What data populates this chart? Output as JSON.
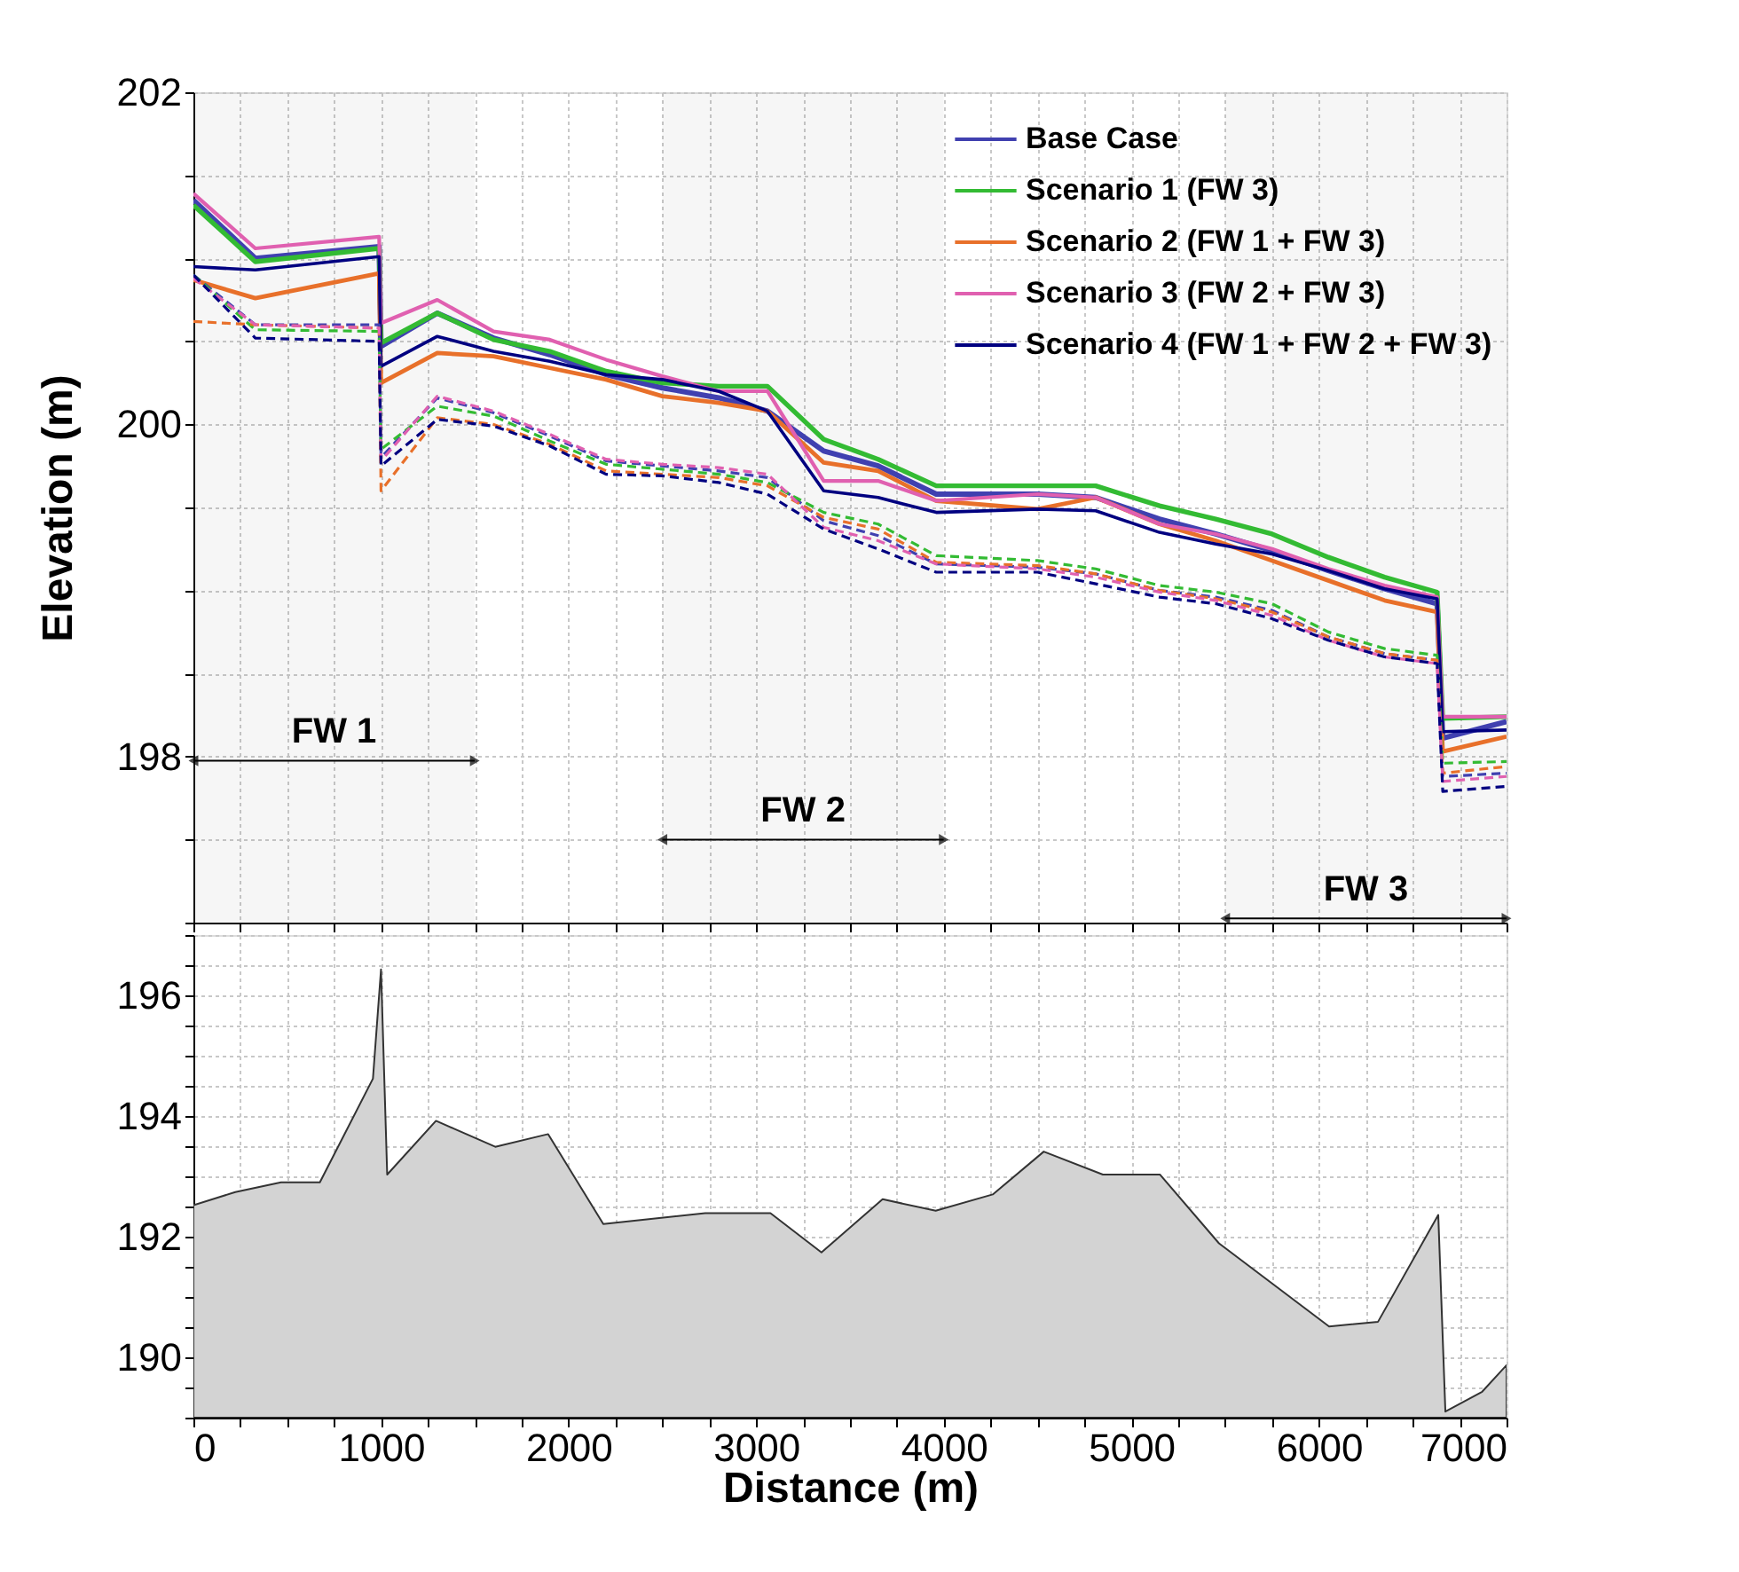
{
  "chart_data": [
    {
      "type": "line",
      "ylabel": "Elevation (m)",
      "xlim": [
        0,
        7000
      ],
      "ylim": [
        197,
        202
      ],
      "xticks": [
        0,
        {
          "value": 250,
          "label": null
        },
        {
          "value": 500,
          "label": null
        },
        {
          "value": 750,
          "label": null
        },
        1000,
        {
          "value": 1250,
          "label": null
        },
        {
          "value": 1500,
          "label": null
        },
        {
          "value": 1750,
          "label": null
        },
        2000,
        {
          "value": 2250,
          "label": null
        },
        {
          "value": 2500,
          "label": null
        },
        {
          "value": 2750,
          "label": null
        },
        3000,
        {
          "value": 3250,
          "label": null
        },
        {
          "value": 3500,
          "label": null
        },
        {
          "value": 3750,
          "label": null
        },
        4000,
        {
          "value": 4250,
          "label": null
        },
        {
          "value": 4500,
          "label": null
        },
        {
          "value": 4750,
          "label": null
        },
        5000,
        {
          "value": 5250,
          "label": null
        },
        {
          "value": 5500,
          "label": null
        },
        {
          "value": 5750,
          "label": null
        },
        6000,
        {
          "value": 6250,
          "label": null
        },
        {
          "value": 6500,
          "label": null
        },
        {
          "value": 6750,
          "label": null
        },
        7000
      ],
      "yticks": [
        {
          "value": 197,
          "label": null
        },
        {
          "value": 197.5,
          "label": null
        },
        198,
        {
          "value": 198.5,
          "label": null
        },
        {
          "value": 199,
          "label": null
        },
        {
          "value": 199.5,
          "label": null
        },
        200,
        {
          "value": 200.5,
          "label": null
        },
        {
          "value": 201,
          "label": null
        },
        {
          "value": 201.5,
          "label": null
        },
        202
      ],
      "tick_labels": "y",
      "grid": true,
      "legend": "top right",
      "x": [
        0,
        330,
        990,
        1000,
        1300,
        1600,
        1900,
        2200,
        2500,
        2800,
        3060,
        3360,
        3650,
        3960,
        4500,
        4810,
        5150,
        5450,
        5750,
        6050,
        6350,
        6630,
        6660,
        7000
      ],
      "series": [
        {
          "name": "Base Case",
          "color": "#4040b0",
          "line_style": "solid",
          "values": [
            201.35,
            201.0,
            201.07,
            200.47,
            200.67,
            200.52,
            200.42,
            200.3,
            200.22,
            200.16,
            200.08,
            199.84,
            199.75,
            199.58,
            199.58,
            199.56,
            199.43,
            199.34,
            199.24,
            199.12,
            199.01,
            198.92,
            198.11,
            198.21
          ]
        },
        {
          "name": "Scenario 1 (FW 3)",
          "color": "#33bb33",
          "line_style": "solid",
          "values": [
            201.32,
            200.98,
            201.06,
            200.49,
            200.67,
            200.51,
            200.44,
            200.32,
            200.25,
            200.23,
            200.23,
            199.91,
            199.79,
            199.63,
            199.63,
            199.63,
            199.51,
            199.43,
            199.34,
            199.2,
            199.08,
            198.99,
            198.23,
            198.24
          ]
        },
        {
          "name": "Scenario 2 (FW 1 + FW 3)",
          "color": "#e8702a",
          "line_style": "solid",
          "values": [
            200.87,
            200.76,
            200.91,
            200.25,
            200.43,
            200.41,
            200.34,
            200.27,
            200.17,
            200.13,
            200.08,
            199.77,
            199.72,
            199.54,
            199.49,
            199.56,
            199.4,
            199.3,
            199.18,
            199.06,
            198.94,
            198.87,
            198.03,
            198.12
          ]
        },
        {
          "name": "Scenario 3 (FW 2 + FW 3)",
          "color": "#e060b0",
          "line_style": "solid",
          "values": [
            201.39,
            201.06,
            201.13,
            200.61,
            200.75,
            200.56,
            200.51,
            200.39,
            200.29,
            200.2,
            200.2,
            199.66,
            199.66,
            199.54,
            199.58,
            199.56,
            199.4,
            199.34,
            199.25,
            199.13,
            199.03,
            198.96,
            198.24,
            198.24
          ]
        },
        {
          "name": "Scenario 4 (FW 1 + FW 2 + FW 3)",
          "color": "#000080",
          "line_style": "solid",
          "values": [
            200.95,
            200.93,
            201.01,
            200.35,
            200.53,
            200.44,
            200.38,
            200.3,
            200.27,
            200.2,
            200.08,
            199.6,
            199.56,
            199.47,
            199.49,
            199.48,
            199.35,
            199.28,
            199.22,
            199.12,
            199.01,
            198.95,
            198.15,
            198.16
          ]
        },
        {
          "color": "#4040b0",
          "line_style": "dashed",
          "values": [
            200.9,
            200.6,
            200.6,
            199.8,
            200.16,
            200.07,
            199.93,
            199.78,
            199.75,
            199.72,
            199.68,
            199.42,
            199.33,
            199.16,
            199.14,
            199.1,
            199.0,
            198.96,
            198.88,
            198.72,
            198.62,
            198.58,
            197.88,
            197.9
          ]
        },
        {
          "color": "#33bb33",
          "line_style": "dashed",
          "values": [
            200.9,
            200.57,
            200.56,
            199.85,
            200.11,
            200.05,
            199.9,
            199.76,
            199.73,
            199.7,
            199.65,
            199.47,
            199.4,
            199.21,
            199.18,
            199.13,
            199.03,
            198.99,
            198.92,
            198.75,
            198.65,
            198.61,
            197.96,
            197.97
          ]
        },
        {
          "color": "#e8702a",
          "line_style": "dashed",
          "values": [
            200.62,
            200.6,
            200.58,
            199.6,
            200.04,
            200.0,
            199.88,
            199.72,
            199.7,
            199.68,
            199.63,
            199.44,
            199.37,
            199.17,
            199.15,
            199.1,
            199.0,
            198.95,
            198.87,
            198.72,
            198.62,
            198.58,
            197.9,
            197.94
          ]
        },
        {
          "color": "#e060b0",
          "line_style": "dashed",
          "values": [
            200.88,
            200.6,
            200.58,
            199.78,
            200.17,
            200.08,
            199.94,
            199.79,
            199.76,
            199.74,
            199.7,
            199.38,
            199.3,
            199.16,
            199.13,
            199.08,
            198.99,
            198.94,
            198.85,
            198.7,
            198.6,
            198.56,
            197.85,
            197.88
          ]
        },
        {
          "color": "#000080",
          "line_style": "dashed",
          "values": [
            200.9,
            200.52,
            200.5,
            199.75,
            200.03,
            199.99,
            199.87,
            199.7,
            199.69,
            199.65,
            199.58,
            199.37,
            199.25,
            199.11,
            199.11,
            199.04,
            198.96,
            198.92,
            198.83,
            198.7,
            198.6,
            198.56,
            197.79,
            197.82
          ]
        }
      ],
      "bands": [
        {
          "axis": "x",
          "from": 0,
          "to": 1500,
          "label": "FW 1"
        },
        {
          "axis": "x",
          "from": 2500,
          "to": 4000,
          "label": "FW 2"
        },
        {
          "axis": "x",
          "from": 5500,
          "to": 7000,
          "label": "FW 3"
        }
      ]
    },
    {
      "type": "area",
      "xlabel": "Distance (m)",
      "xlim": [
        0,
        7000
      ],
      "ylim": [
        189,
        197
      ],
      "xticks": [
        0,
        {
          "value": 250,
          "label": null
        },
        {
          "value": 500,
          "label": null
        },
        {
          "value": 750,
          "label": null
        },
        1000,
        {
          "value": 1250,
          "label": null
        },
        {
          "value": 1500,
          "label": null
        },
        {
          "value": 1750,
          "label": null
        },
        2000,
        {
          "value": 2250,
          "label": null
        },
        {
          "value": 2500,
          "label": null
        },
        {
          "value": 2750,
          "label": null
        },
        3000,
        {
          "value": 3250,
          "label": null
        },
        {
          "value": 3500,
          "label": null
        },
        {
          "value": 3750,
          "label": null
        },
        4000,
        {
          "value": 4250,
          "label": null
        },
        {
          "value": 4500,
          "label": null
        },
        {
          "value": 4750,
          "label": null
        },
        5000,
        {
          "value": 5250,
          "label": null
        },
        {
          "value": 5500,
          "label": null
        },
        {
          "value": 5750,
          "label": null
        },
        6000,
        {
          "value": 6250,
          "label": null
        },
        {
          "value": 6500,
          "label": null
        },
        {
          "value": 6750,
          "label": null
        },
        7000
      ],
      "yticks": [
        {
          "value": 189,
          "label": null
        },
        {
          "value": 189.5,
          "label": null
        },
        190,
        {
          "value": 190.5,
          "label": null
        },
        {
          "value": 191,
          "label": null
        },
        {
          "value": 191.5,
          "label": null
        },
        192,
        {
          "value": 192.5,
          "label": null
        },
        {
          "value": 193,
          "label": null
        },
        {
          "value": 193.5,
          "label": null
        },
        194,
        {
          "value": 194.5,
          "label": null
        },
        {
          "value": 195,
          "label": null
        },
        {
          "value": 195.5,
          "label": null
        },
        196,
        {
          "value": 196.5,
          "label": null
        },
        {
          "value": 197,
          "label": null
        }
      ],
      "grid": true,
      "x": [
        0,
        223,
        467,
        674,
        957,
        1000,
        1033,
        1293,
        1609,
        1891,
        2185,
        2728,
        3076,
        3348,
        3674,
        3957,
        4261,
        4533,
        4848,
        5152,
        5467,
        6054,
        6315,
        6636,
        6674,
        6870,
        7000
      ],
      "series": [
        {
          "color": "#d3d3d3",
          "values": [
            192.52,
            192.74,
            192.9,
            192.9,
            194.62,
            196.43,
            193.03,
            193.92,
            193.49,
            193.7,
            192.21,
            192.39,
            192.39,
            191.74,
            192.62,
            192.43,
            192.7,
            193.41,
            193.03,
            193.03,
            191.89,
            190.51,
            190.59,
            192.36,
            189.1,
            189.43,
            189.87
          ]
        }
      ]
    }
  ]
}
